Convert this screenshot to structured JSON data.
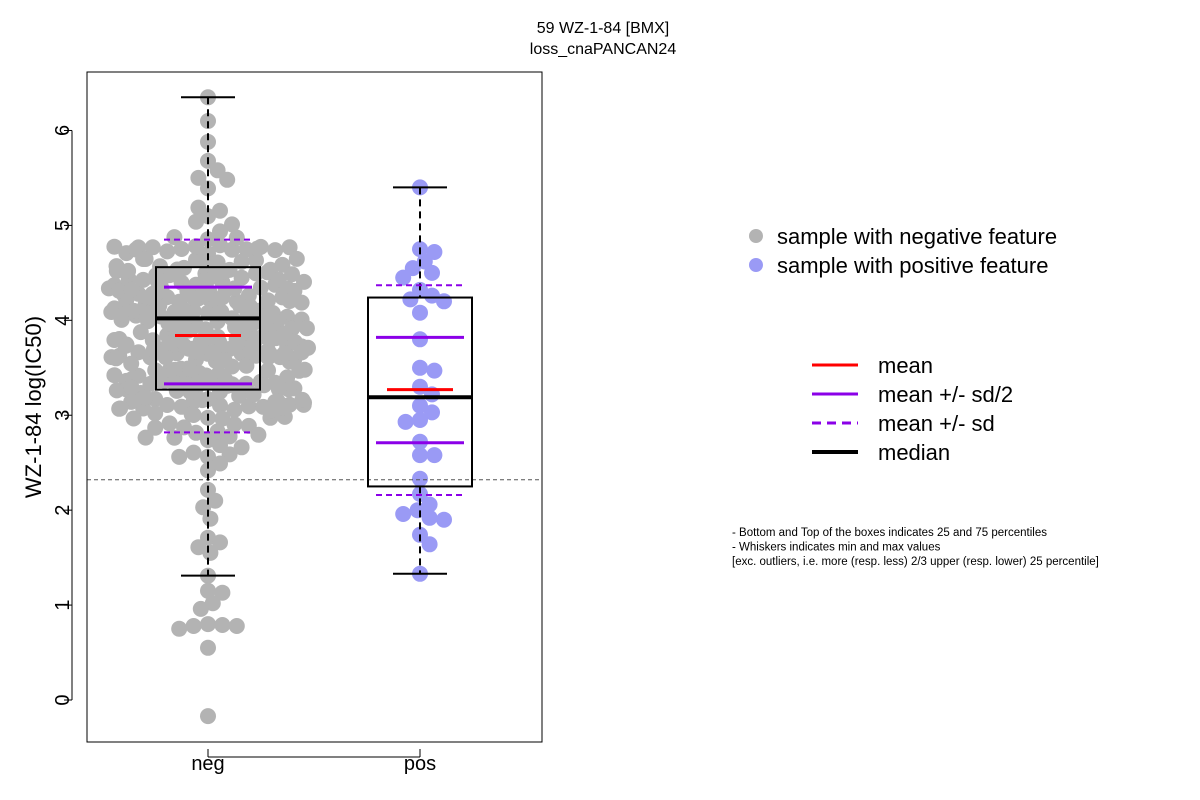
{
  "chart_data": {
    "type": "box",
    "title": "59 WZ-1-84 [BMX]",
    "subtitle": "loss_cnaPANCAN24",
    "ylabel": "WZ-1-84 log(IC50)",
    "xlabel": "",
    "ylim": [
      -0.45,
      6.6
    ],
    "yticks": [
      0,
      1,
      2,
      3,
      4,
      5,
      6
    ],
    "categories": [
      "neg",
      "pos"
    ],
    "threshold_line": 2.32,
    "colors": {
      "neg_points": "#b3b3b3",
      "pos_points": "#9a9af5",
      "mean": "#ff0000",
      "sd": "#8b00e8",
      "median": "#000000",
      "threshold": "#555555"
    },
    "series": [
      {
        "category": "neg",
        "min": 1.31,
        "q1": 3.27,
        "median": 4.02,
        "q3": 4.56,
        "max": 6.35,
        "mean": 3.84,
        "mean_minus_half_sd": 3.33,
        "mean_plus_half_sd": 4.35,
        "mean_minus_sd": 2.82,
        "mean_plus_sd": 4.85,
        "outliers": [
          1.15,
          1.13,
          1.02,
          0.96,
          0.8,
          0.79,
          0.78,
          0.78,
          0.75,
          0.55,
          -0.17
        ]
      },
      {
        "category": "pos",
        "min": 1.33,
        "q1": 2.25,
        "median": 3.19,
        "q3": 4.24,
        "max": 5.4,
        "mean": 3.27,
        "mean_minus_half_sd": 2.71,
        "mean_plus_half_sd": 3.82,
        "mean_minus_sd": 2.16,
        "mean_plus_sd": 4.37,
        "values": [
          5.4,
          4.75,
          4.72,
          4.62,
          4.55,
          4.5,
          4.45,
          4.32,
          4.26,
          4.22,
          4.2,
          4.08,
          3.8,
          3.5,
          3.47,
          3.3,
          3.22,
          3.1,
          3.03,
          2.95,
          2.93,
          2.72,
          2.58,
          2.58,
          2.33,
          2.17,
          2.06,
          2.0,
          1.96,
          1.92,
          1.9,
          1.74,
          1.64,
          1.33
        ]
      }
    ],
    "legend_points": [
      {
        "label": "sample with negative feature",
        "color": "#b3b3b3"
      },
      {
        "label": "sample with positive feature",
        "color": "#9a9af5"
      }
    ],
    "legend_lines": [
      {
        "label": "mean",
        "color": "#ff0000",
        "dash": false
      },
      {
        "label": "mean +/- sd/2",
        "color": "#8b00e8",
        "dash": false
      },
      {
        "label": "mean +/- sd",
        "color": "#8b00e8",
        "dash": true
      },
      {
        "label": "median",
        "color": "#000000",
        "dash": false
      }
    ],
    "notes": [
      "- Bottom and Top of the boxes indicates 25 and 75 percentiles",
      "- Whiskers indicates min and max values",
      "[exc. outliers, i.e. more (resp. less) 2/3 upper (resp. lower) 25 percentile]"
    ]
  }
}
